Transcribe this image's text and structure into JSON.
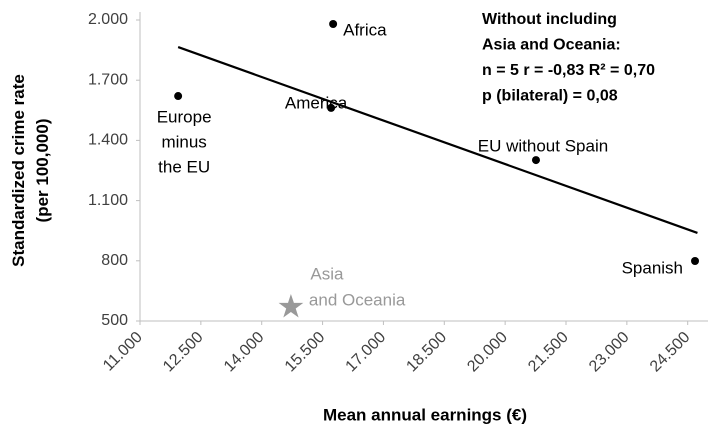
{
  "chart_data": {
    "type": "scatter",
    "ylabel": [
      "Standardized crime rate",
      "(per 100,000)"
    ],
    "xlabel": "Mean annual earnings (€)",
    "x": [
      11940,
      15760,
      15710,
      20760,
      24680
    ],
    "values": [
      1621,
      1980,
      1562,
      1302,
      799
    ],
    "point_labels": [
      [
        "Europe",
        "minus",
        "the EU"
      ],
      [
        "Africa"
      ],
      [
        "America"
      ],
      [
        "EU without Spain"
      ],
      [
        "Spanish"
      ]
    ],
    "color": "#000000",
    "highlight": {
      "label": [
        "Asia",
        "and Oceania"
      ],
      "x": 14720,
      "value": 570,
      "color": "#999999"
    },
    "trendline": {
      "x": [
        11940,
        24740
      ],
      "values": [
        1865,
        939
      ],
      "color": "#000000"
    },
    "annotation": [
      "Without including",
      "Asia and Oceania:",
      "n = 5   r =  -0,83   R² = 0,70",
      "p (bilateral) = 0,08"
    ],
    "xlim": [
      11000,
      25000
    ],
    "ylim": [
      500,
      2000
    ],
    "xticks": [
      {
        "value": 11000,
        "label": "11.000"
      },
      {
        "value": 12500,
        "label": "12.500"
      },
      {
        "value": 14000,
        "label": "14.000"
      },
      {
        "value": 15500,
        "label": "15.500"
      },
      {
        "value": 17000,
        "label": "17.000"
      },
      {
        "value": 18500,
        "label": "18.500"
      },
      {
        "value": 20000,
        "label": "20.000"
      },
      {
        "value": 21500,
        "label": "21.500"
      },
      {
        "value": 23000,
        "label": "23.000"
      },
      {
        "value": 24500,
        "label": "24.500"
      }
    ],
    "yticks": [
      500,
      800,
      {
        "value": 1100,
        "label": "1.100"
      },
      {
        "value": 1400,
        "label": "1.400"
      },
      {
        "value": 1700,
        "label": "1.700"
      },
      {
        "value": 2000,
        "label": "2.000"
      }
    ],
    "grid": false
  }
}
